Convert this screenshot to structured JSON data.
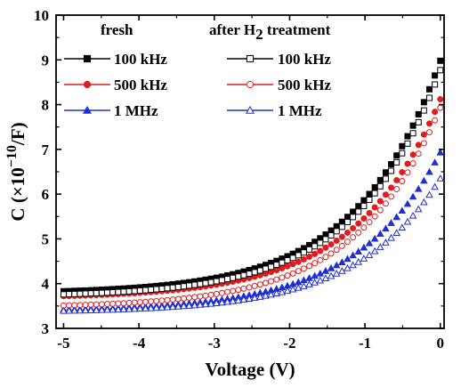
{
  "chart_data": {
    "type": "scatter",
    "xlabel": "Voltage (V)",
    "ylabel_main": "C (×10",
    "ylabel_sup": "−10",
    "ylabel_end": "/F)",
    "xlim": [
      -5.1,
      0.05
    ],
    "ylim": [
      3,
      10
    ],
    "xticks": [
      -5,
      -4,
      -3,
      -2,
      -1,
      0
    ],
    "xtick_labels": [
      "-5",
      "-4",
      "-3",
      "-2",
      "-1",
      "0"
    ],
    "yticks": [
      3,
      4,
      5,
      6,
      7,
      8,
      9,
      10
    ],
    "ytick_labels": [
      "3",
      "4",
      "5",
      "6",
      "7",
      "8",
      "9",
      "10"
    ],
    "legend_group_fresh": "fresh",
    "legend_group_after_prefix": "after H",
    "legend_group_after_sub": "2",
    "legend_group_after_suffix": " treatment",
    "legend_placement": "top-left",
    "grid": false,
    "x_start": -5,
    "x_end": 0,
    "n_points": 70,
    "series": [
      {
        "name": "100 kHz",
        "group": "fresh",
        "marker": "square",
        "filled": true,
        "color": "#000000",
        "y_start": 3.83,
        "y_end": 8.98
      },
      {
        "name": "500 kHz",
        "group": "fresh",
        "marker": "circle",
        "filled": true,
        "color": "#e41a1c",
        "y_start": 3.72,
        "y_end": 8.12
      },
      {
        "name": "1 MHz",
        "group": "fresh",
        "marker": "triangle",
        "filled": true,
        "color": "#1f2fd6",
        "y_start": 3.42,
        "y_end": 6.93
      },
      {
        "name": "100 kHz",
        "group": "after",
        "marker": "square",
        "filled": false,
        "color": "#000000",
        "y_start": 3.76,
        "y_end": 8.77
      },
      {
        "name": "500 kHz",
        "group": "after",
        "marker": "circle",
        "filled": false,
        "color": "#e41a1c",
        "y_start": 3.51,
        "y_end": 7.93
      },
      {
        "name": "1 MHz",
        "group": "after",
        "marker": "triangle",
        "filled": false,
        "color": "#1f2fd6",
        "y_start": 3.39,
        "y_end": 6.35
      }
    ]
  }
}
